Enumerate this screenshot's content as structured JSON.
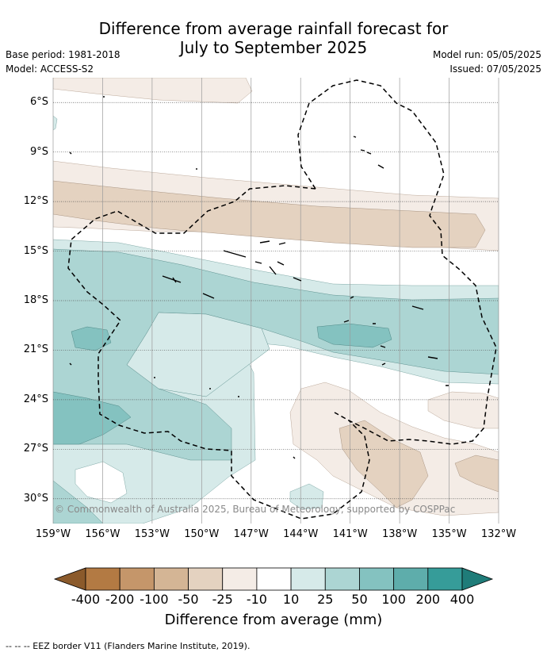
{
  "title": {
    "line1": "Difference from average rainfall forecast for",
    "line2": "July to September 2025"
  },
  "meta_left": {
    "base_period": "Base period: 1981-2018",
    "model": "Model: ACCESS-S2"
  },
  "meta_right": {
    "model_run": "Model run: 05/05/2025",
    "issued": "Issued: 07/05/2025"
  },
  "map": {
    "lat_labels": [
      "6°S",
      "9°S",
      "12°S",
      "15°S",
      "18°S",
      "21°S",
      "24°S",
      "27°S",
      "30°S"
    ],
    "lon_labels": [
      "159°W",
      "156°W",
      "153°W",
      "150°W",
      "147°W",
      "144°W",
      "141°W",
      "138°W",
      "135°W",
      "132°W"
    ],
    "lat_values": [
      -6,
      -9,
      -12,
      -15,
      -18,
      -21,
      -24,
      -27,
      -30
    ],
    "lon_values": [
      -159,
      -156,
      -153,
      -150,
      -147,
      -144,
      -141,
      -138,
      -135,
      -132
    ],
    "lon_range": [
      -159,
      -132
    ],
    "lat_range": [
      -31.5,
      -4.5
    ],
    "copyright": "© Commonwealth of Australia 2025, Bureau of Meteorology, supported by COSPPac"
  },
  "colorbar": {
    "labels": [
      "-400",
      "-200",
      "-100",
      "-50",
      "-25",
      "-10",
      "10",
      "25",
      "50",
      "100",
      "200",
      "400"
    ],
    "colors": [
      "#8b5a2b",
      "#b37a43",
      "#c5966a",
      "#d4b595",
      "#e4d2c0",
      "#f4ece6",
      "#ffffff",
      "#d6eae9",
      "#acd5d3",
      "#84c2c0",
      "#5eadab",
      "#369c99",
      "#1f7c79"
    ],
    "title": "Difference from average (mm)"
  },
  "footnote": "--  --  -- EEZ border V11 (Flanders Marine Institute, 2019)."
}
